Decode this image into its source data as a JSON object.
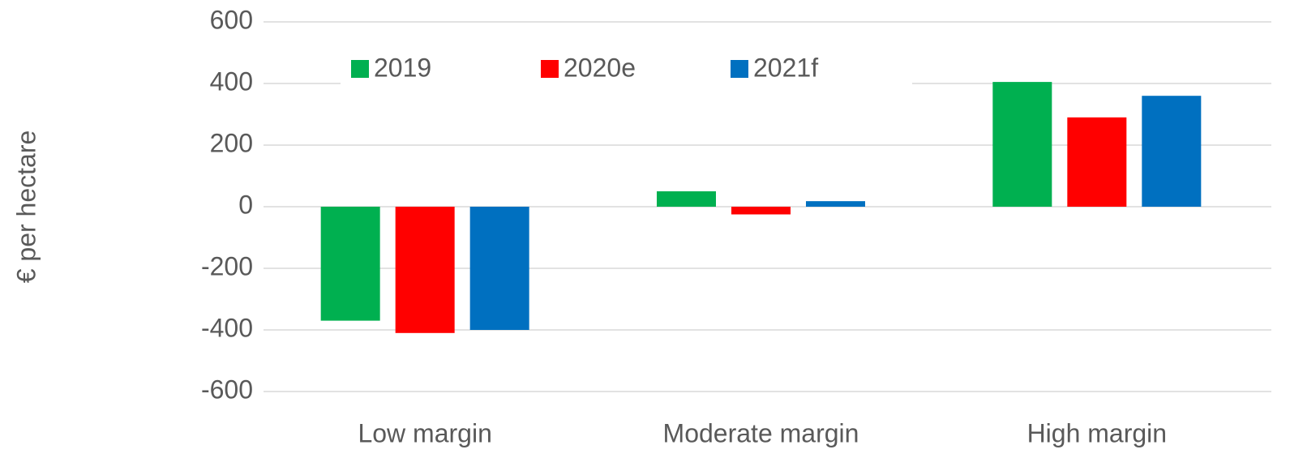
{
  "chart_data": {
    "type": "bar",
    "y_label": "€ per hectare",
    "categories": [
      "Low margin",
      "Moderate margin",
      "High margin"
    ],
    "series": [
      {
        "name": "2019",
        "color": "#00b050",
        "values": [
          -370,
          50,
          405
        ]
      },
      {
        "name": "2020e",
        "color": "#ff0000",
        "values": [
          -410,
          -25,
          290
        ]
      },
      {
        "name": "2021f",
        "color": "#0070c0",
        "values": [
          -400,
          18,
          360
        ]
      }
    ],
    "ylim": [
      -600,
      600
    ],
    "yticks": [
      -600,
      -400,
      -200,
      0,
      200,
      400,
      600
    ],
    "grid": true,
    "legend": "upper left"
  }
}
